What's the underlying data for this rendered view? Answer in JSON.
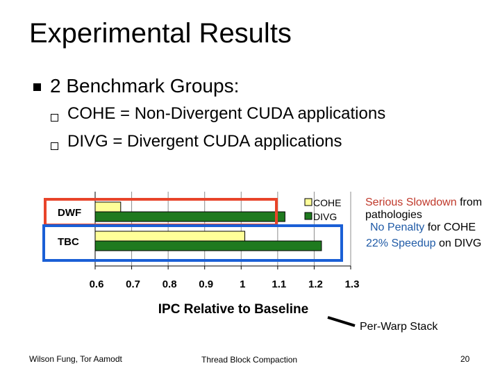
{
  "slide": {
    "title": "Experimental Results",
    "bullet": "2 Benchmark Groups:",
    "sub_bullets": [
      "COHE = Non-Divergent CUDA applications",
      "DIVG = Divergent CUDA applications"
    ],
    "annotations": {
      "dwf_line1_red": "Serious Slowdown",
      "dwf_line1_black": " from",
      "dwf_line2": "pathologies",
      "tbc_line1_blue": "No Penalty",
      "tbc_line1_black": " for COHE",
      "tbc_line2_blue": "22% Speedup",
      "tbc_line2_black": " on DIVG",
      "per_warp": "Per-Warp Stack"
    },
    "footer": {
      "authors": "Wilson Fung, Tor Aamodt",
      "center": "Thread Block Compaction",
      "page": "20"
    },
    "colors": {
      "dwf_box": "#e8442a",
      "tbc_box": "#1a5fd6",
      "cohe_fill": "#ffff99",
      "divg_fill": "#1f7a1f"
    }
  },
  "chart_data": {
    "type": "bar",
    "orientation": "horizontal",
    "categories": [
      "DWF",
      "TBC"
    ],
    "series": [
      {
        "name": "COHE",
        "values": [
          0.67,
          1.01
        ],
        "color": "#ffff99"
      },
      {
        "name": "DIVG",
        "values": [
          1.12,
          1.22
        ],
        "color": "#1f7a1f"
      }
    ],
    "baseline": 0.6,
    "xlim": [
      0.6,
      1.3
    ],
    "xticks": [
      "0.6",
      "0.7",
      "0.8",
      "0.9",
      "1",
      "1.1",
      "1.2",
      "1.3"
    ],
    "xlabel": "IPC Relative to Baseline",
    "legend": "top-right",
    "grid": true
  }
}
